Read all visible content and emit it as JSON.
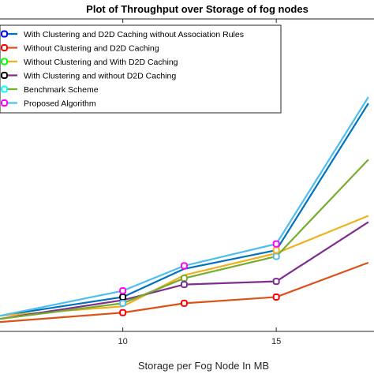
{
  "chart_data": {
    "type": "line",
    "title": "Plot of Throughput over Storage of fog nodes",
    "xlabel": "Storage per Fog Node In MB",
    "ylabel": "",
    "xticks": [
      10,
      15
    ],
    "x": [
      6,
      10,
      12,
      15,
      18
    ],
    "xlim": [
      6,
      18
    ],
    "ylim": [
      0,
      100
    ],
    "grid": false,
    "legend_position": "top-left",
    "series": [
      {
        "name": "With Clustering and D2D Caching without Association Rules",
        "color": "#0072BD",
        "values": [
          5,
          11,
          20,
          26,
          73
        ]
      },
      {
        "name": "Without Clustering and D2D Caching",
        "color": "#D95319",
        "values": [
          3,
          6,
          9,
          11,
          22
        ]
      },
      {
        "name": "Without Clustering and With D2D Caching",
        "color": "#EDB120",
        "values": [
          5,
          8,
          18,
          25,
          37
        ]
      },
      {
        "name": "With Clustering and without D2D Caching",
        "color": "#7E2F8E",
        "values": [
          4,
          10,
          15,
          16,
          35
        ]
      },
      {
        "name": "Benchmark Scheme",
        "color": "#77AC30",
        "values": [
          4,
          9,
          17,
          24,
          55
        ]
      },
      {
        "name": "Proposed Algorithm",
        "color": "#4DBEEE",
        "values": [
          5,
          13,
          21,
          28,
          75
        ]
      }
    ],
    "markers": [
      {
        "series": 0,
        "x": 10,
        "color": "#000000"
      },
      {
        "series": 1,
        "x": 10,
        "color": "#ff0000"
      },
      {
        "series": 4,
        "x": 10,
        "color": "#4DBEEE"
      },
      {
        "series": 5,
        "x": 10,
        "color": "#ff00ff"
      },
      {
        "series": 4,
        "x": 12,
        "color": "#77AC30"
      },
      {
        "series": 5,
        "x": 12,
        "color": "#ff00ff"
      },
      {
        "series": 3,
        "x": 12,
        "color": "#7E2F8E"
      },
      {
        "series": 1,
        "x": 12,
        "color": "#ff0000"
      },
      {
        "series": 1,
        "x": 15,
        "color": "#ff0000"
      },
      {
        "series": 3,
        "x": 15,
        "color": "#7E2F8E"
      },
      {
        "series": 4,
        "x": 15,
        "color": "#4DBEEE"
      },
      {
        "series": 0,
        "x": 15,
        "color": "#EDB120"
      },
      {
        "series": 5,
        "x": 15,
        "color": "#ff00ff"
      }
    ],
    "legend_marker_colors": [
      "#0000ff",
      "#ff0000",
      "#00ff00",
      "#000000",
      "#00ffff",
      "#ff00ff"
    ]
  }
}
